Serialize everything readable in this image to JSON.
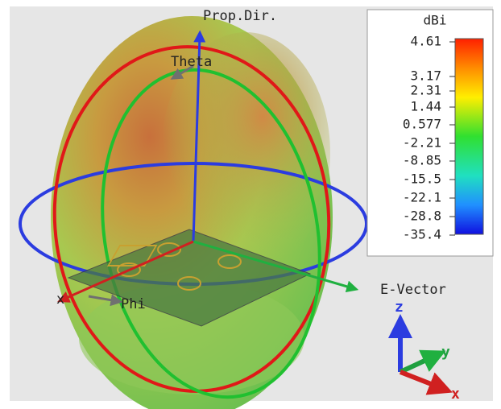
{
  "view": {
    "axes": {
      "prop_dir": "Prop.Dir.",
      "theta": "Theta",
      "e_vector": "E-Vector",
      "x": "x",
      "phi": "Phi"
    },
    "triad": {
      "z": "z",
      "y": "y",
      "x": "x"
    }
  },
  "colorbar": {
    "title": "dBi",
    "labels": [
      "4.61",
      "3.17",
      "2.31",
      "1.44",
      "0.577",
      "-2.21",
      "-8.85",
      "-15.5",
      "-22.1",
      "-28.8",
      "-35.4"
    ]
  }
}
